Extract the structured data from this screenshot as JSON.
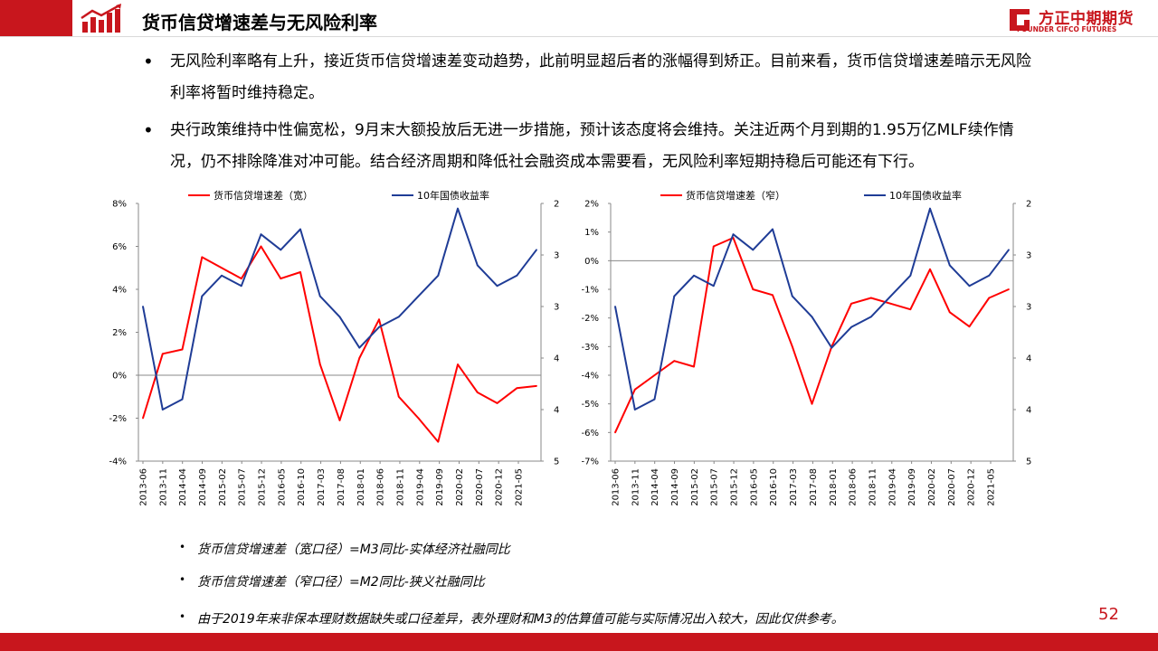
{
  "header": {
    "title": "货币信贷增速差与无风险利率",
    "brand_cn": "方正中期期货",
    "brand_en": "FOUNDER CIFCO FUTURES",
    "brand_color": "#c8161d"
  },
  "bullets": {
    "symbol": "•",
    "p1": "无风险利率略有上升，接近货币信贷增速差变动趋势，此前明显超后者的涨幅得到矫正。目前来看，货币信贷增速差暗示无风险利率将暂时维持稳定。",
    "p2": "央行政策维持中性偏宽松，9月末大额投放后无进一步措施，预计该态度将会维持。关注近两个月到期的1.95万亿MLF续作情况，仍不排除降准对冲可能。结合经济周期和降低社会融资成本需要看，无风险利率短期持稳后可能还有下行。"
  },
  "chart_data": [
    {
      "type": "line",
      "x": [
        "2013-06",
        "2013-11",
        "2014-04",
        "2014-09",
        "2015-02",
        "2015-07",
        "2015-12",
        "2016-05",
        "2016-10",
        "2017-03",
        "2017-08",
        "2018-01",
        "2018-06",
        "2018-11",
        "2019-04",
        "2019-09",
        "2020-02",
        "2020-07",
        "2020-12",
        "2021-05",
        "2021-09"
      ],
      "xticks": [
        "2013-06",
        "2013-11",
        "2014-04",
        "2014-09",
        "2015-02",
        "2015-07",
        "2015-12",
        "2016-05",
        "2016-10",
        "2017-03",
        "2017-08",
        "2018-01",
        "2018-06",
        "2018-11",
        "2019-04",
        "2019-09",
        "2020-02",
        "2020-07",
        "2020-12",
        "2021-05"
      ],
      "series": [
        {
          "name": "货币信贷增速差（宽）",
          "axis": "left",
          "color": "#ff0000",
          "values": [
            -2.0,
            1.0,
            1.2,
            5.5,
            5.0,
            4.5,
            6.0,
            4.5,
            4.8,
            0.5,
            -2.1,
            0.8,
            2.6,
            -1.0,
            -2.0,
            -3.1,
            0.5,
            -0.8,
            -1.3,
            -0.6,
            -0.5
          ]
        },
        {
          "name": "10年国债收益率",
          "axis": "right",
          "color": "#1f3c96",
          "values": [
            3.5,
            4.5,
            4.4,
            3.4,
            3.2,
            3.3,
            2.8,
            2.95,
            2.75,
            3.4,
            3.6,
            3.9,
            3.7,
            3.6,
            3.4,
            3.2,
            2.55,
            3.1,
            3.3,
            3.2,
            2.95
          ]
        }
      ],
      "legend": [
        "货币信贷增速差（宽）",
        "10年国债收益率"
      ],
      "ylim_left": [
        -4,
        8
      ],
      "yticks_left": [
        "8%",
        "6%",
        "4%",
        "2%",
        "0%",
        "-2%",
        "-4%"
      ],
      "ylim_right": [
        5.0,
        2.5
      ],
      "yticks_right": [
        "2.5%",
        "3.0%",
        "3.5%",
        "4.0%",
        "4.5%",
        "5.0%"
      ]
    },
    {
      "type": "line",
      "x": [
        "2013-06",
        "2013-11",
        "2014-04",
        "2014-09",
        "2015-02",
        "2015-07",
        "2015-12",
        "2016-05",
        "2016-10",
        "2017-03",
        "2017-08",
        "2018-01",
        "2018-06",
        "2018-11",
        "2019-04",
        "2019-09",
        "2020-02",
        "2020-07",
        "2020-12",
        "2021-05",
        "2021-09"
      ],
      "xticks": [
        "2013-06",
        "2013-11",
        "2014-04",
        "2014-09",
        "2015-02",
        "2015-07",
        "2015-12",
        "2016-05",
        "2016-10",
        "2017-03",
        "2017-08",
        "2018-01",
        "2018-06",
        "2018-11",
        "2019-04",
        "2019-09",
        "2020-02",
        "2020-07",
        "2020-12",
        "2021-05"
      ],
      "series": [
        {
          "name": "货币信贷增速差（窄）",
          "axis": "left",
          "color": "#ff0000",
          "values": [
            -6.0,
            -4.5,
            -4.0,
            -3.5,
            -3.7,
            0.5,
            0.8,
            -1.0,
            -1.2,
            -3.0,
            -5.0,
            -3.0,
            -1.5,
            -1.3,
            -1.5,
            -1.7,
            -0.3,
            -1.8,
            -2.3,
            -1.3,
            -1.0
          ]
        },
        {
          "name": "10年国债收益率",
          "axis": "right",
          "color": "#1f3c96",
          "values": [
            3.5,
            4.5,
            4.4,
            3.4,
            3.2,
            3.3,
            2.8,
            2.95,
            2.75,
            3.4,
            3.6,
            3.9,
            3.7,
            3.6,
            3.4,
            3.2,
            2.55,
            3.1,
            3.3,
            3.2,
            2.95
          ]
        }
      ],
      "legend": [
        "货币信贷增速差（窄）",
        "10年国债收益率"
      ],
      "ylim_left": [
        -7,
        2
      ],
      "yticks_left": [
        "2%",
        "1%",
        "0%",
        "-1%",
        "-2%",
        "-3%",
        "-4%",
        "-5%",
        "-6%",
        "-7%"
      ],
      "ylim_right": [
        5.0,
        2.5
      ],
      "yticks_right": [
        "2.5%",
        "3.0%",
        "3.5%",
        "4.0%",
        "4.5%",
        "5.0%"
      ]
    }
  ],
  "notes": {
    "n1": "货币信贷增速差（宽口径）=M3同比-实体经济社融同比",
    "n2": "货币信贷增速差（窄口径）=M2同比-狭义社融同比",
    "n3": "由于2019年来非保本理财数据缺失或口径差异，表外理财和M3的估算值可能与实际情况出入较大，因此仅供参考。"
  },
  "page_number": "52"
}
